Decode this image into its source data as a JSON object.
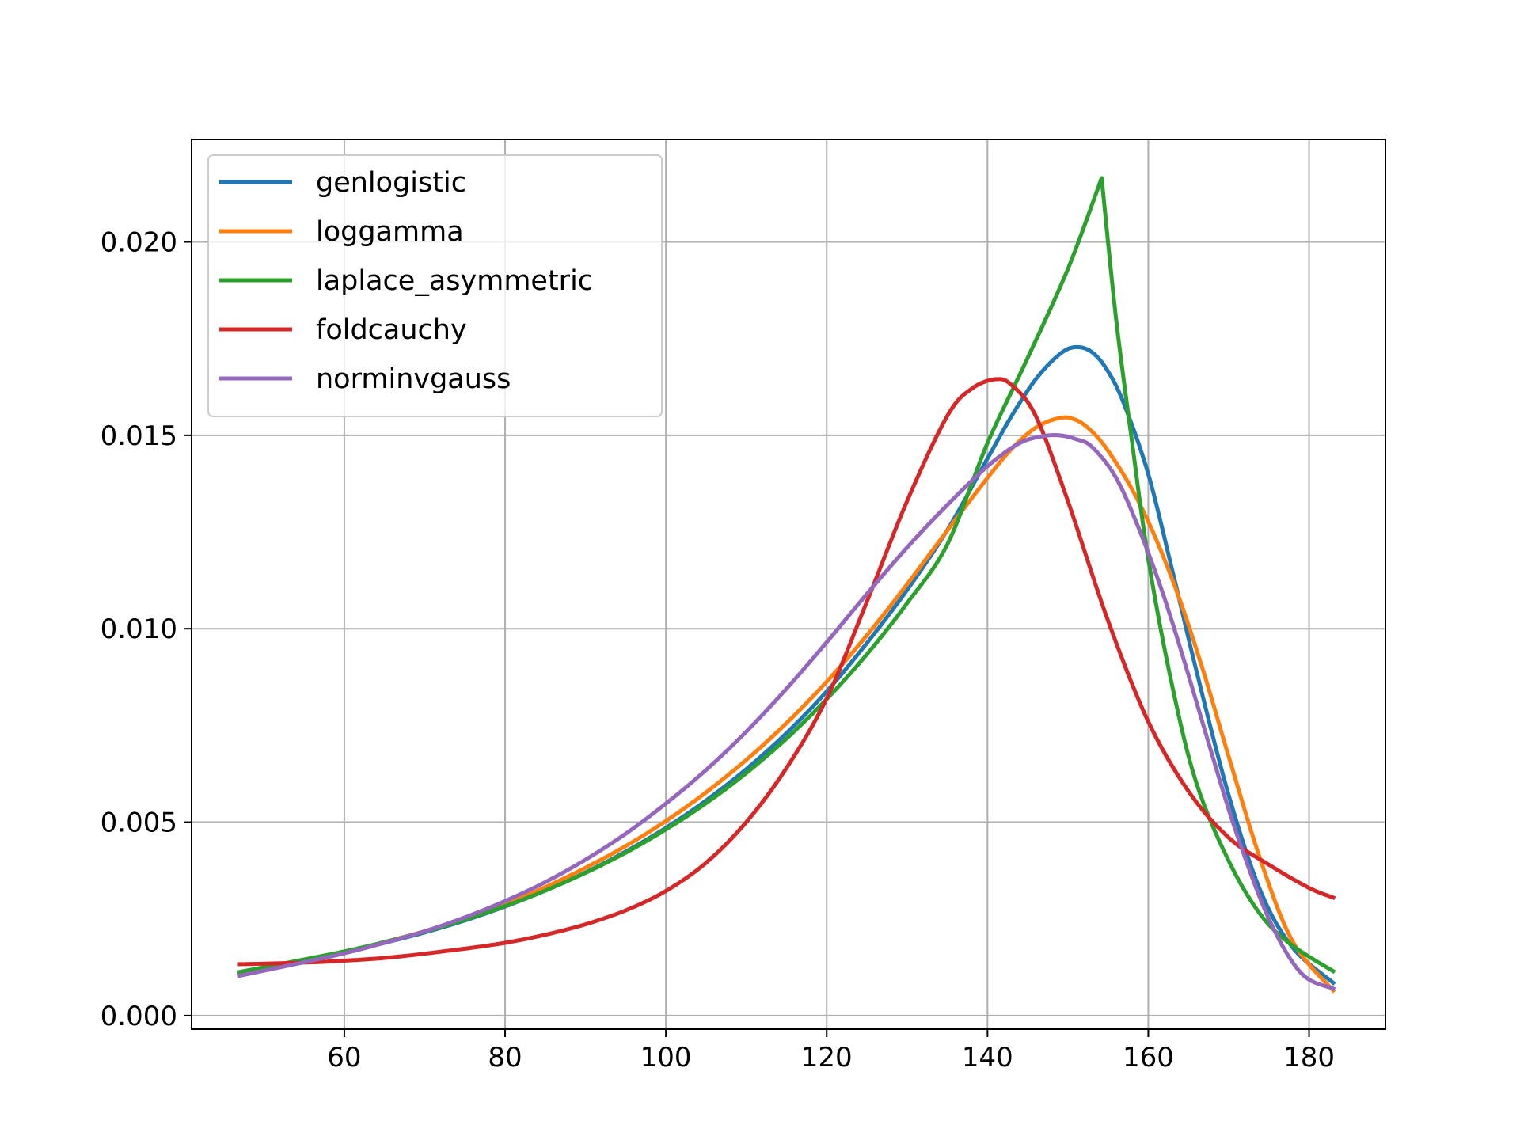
{
  "chart_data": {
    "type": "line",
    "title": "",
    "xlabel": "",
    "ylabel": "",
    "xlim": [
      41,
      189.5
    ],
    "ylim": [
      -0.00035,
      0.02265
    ],
    "xticks": [
      60,
      80,
      100,
      120,
      140,
      160,
      180
    ],
    "xtick_labels": [
      "60",
      "80",
      "100",
      "120",
      "140",
      "160",
      "180"
    ],
    "yticks": [
      0,
      0.005,
      0.01,
      0.015,
      0.02
    ],
    "ytick_labels": [
      "0.000",
      "0.005",
      "0.010",
      "0.015",
      "0.020"
    ],
    "grid": true,
    "legend_position": "upper-left",
    "series": [
      {
        "name": "genlogistic",
        "color": "#1f77b4",
        "x": [
          47,
          55,
          60,
          65,
          70,
          75,
          80,
          85,
          90,
          95,
          100,
          105,
          110,
          115,
          120,
          125,
          130,
          135,
          140,
          143,
          146,
          149,
          151,
          153,
          155,
          157,
          160,
          163,
          166,
          170,
          174,
          178,
          183
        ],
        "y": [
          0.00108,
          0.0014,
          0.00162,
          0.00188,
          0.00215,
          0.00246,
          0.00282,
          0.00323,
          0.0037,
          0.00424,
          0.00485,
          0.00556,
          0.00637,
          0.0073,
          0.00838,
          0.00963,
          0.011,
          0.01255,
          0.0144,
          0.0155,
          0.01645,
          0.0171,
          0.01728,
          0.01715,
          0.01665,
          0.0158,
          0.014,
          0.0115,
          0.0089,
          0.0057,
          0.0032,
          0.00175,
          0.00085
        ]
      },
      {
        "name": "loggamma",
        "color": "#ff7f0e",
        "x": [
          47,
          55,
          60,
          65,
          70,
          75,
          80,
          85,
          90,
          95,
          100,
          105,
          110,
          115,
          120,
          125,
          130,
          135,
          140,
          143,
          146,
          149,
          151,
          153,
          155,
          158,
          161,
          164,
          167,
          170,
          174,
          178,
          183
        ],
        "y": [
          0.00105,
          0.0014,
          0.00163,
          0.0019,
          0.00218,
          0.0025,
          0.00288,
          0.00332,
          0.00382,
          0.00438,
          0.00503,
          0.00577,
          0.00661,
          0.00756,
          0.00863,
          0.00983,
          0.01115,
          0.01254,
          0.0139,
          0.01465,
          0.0152,
          0.01545,
          0.0154,
          0.0151,
          0.0146,
          0.0136,
          0.0123,
          0.0107,
          0.0088,
          0.0067,
          0.004,
          0.0019,
          0.00065
        ]
      },
      {
        "name": "laplace_asymmetric",
        "color": "#2ca02c",
        "x": [
          47,
          55,
          60,
          65,
          70,
          75,
          80,
          85,
          90,
          95,
          100,
          105,
          110,
          115,
          120,
          125,
          130,
          135,
          140,
          145,
          150,
          154.2,
          156,
          158,
          160,
          163,
          166,
          170,
          174,
          178,
          183
        ],
        "y": [
          0.00113,
          0.00145,
          0.00166,
          0.0019,
          0.00217,
          0.00248,
          0.00283,
          0.00323,
          0.00369,
          0.00421,
          0.00481,
          0.00549,
          0.00627,
          0.00716,
          0.00818,
          0.00934,
          0.01066,
          0.01218,
          0.0148,
          0.017,
          0.0193,
          0.02165,
          0.018,
          0.0148,
          0.0118,
          0.0085,
          0.006,
          0.004,
          0.0026,
          0.0018,
          0.00115
        ]
      },
      {
        "name": "foldcauchy",
        "color": "#d62728",
        "x": [
          47,
          55,
          60,
          65,
          70,
          75,
          80,
          85,
          90,
          95,
          100,
          105,
          110,
          115,
          120,
          125,
          130,
          135,
          138,
          141,
          143,
          146,
          150,
          155,
          160,
          165,
          170,
          175,
          180,
          183
        ],
        "y": [
          0.00133,
          0.00137,
          0.00142,
          0.00149,
          0.0016,
          0.00173,
          0.00188,
          0.00209,
          0.00236,
          0.00272,
          0.00322,
          0.00395,
          0.005,
          0.0064,
          0.0082,
          0.0107,
          0.0133,
          0.0155,
          0.0162,
          0.01645,
          0.0163,
          0.0155,
          0.0133,
          0.0102,
          0.0076,
          0.0058,
          0.0046,
          0.0039,
          0.0033,
          0.00305
        ]
      },
      {
        "name": "norminvgauss",
        "color": "#9467bd",
        "x": [
          47,
          55,
          60,
          65,
          70,
          75,
          80,
          85,
          90,
          95,
          100,
          105,
          110,
          115,
          120,
          125,
          130,
          135,
          140,
          144,
          147,
          149,
          151,
          153,
          156,
          159,
          162,
          165,
          168,
          171,
          175,
          179,
          183
        ],
        "y": [
          0.00103,
          0.00138,
          0.00161,
          0.00188,
          0.00218,
          0.00254,
          0.00296,
          0.00345,
          0.00403,
          0.0047,
          0.00548,
          0.00635,
          0.00734,
          0.00845,
          0.00965,
          0.0109,
          0.0121,
          0.0132,
          0.0142,
          0.0148,
          0.01498,
          0.015,
          0.0149,
          0.0147,
          0.0139,
          0.0125,
          0.0108,
          0.0088,
          0.0067,
          0.0047,
          0.0025,
          0.0011,
          0.0007
        ]
      }
    ]
  }
}
